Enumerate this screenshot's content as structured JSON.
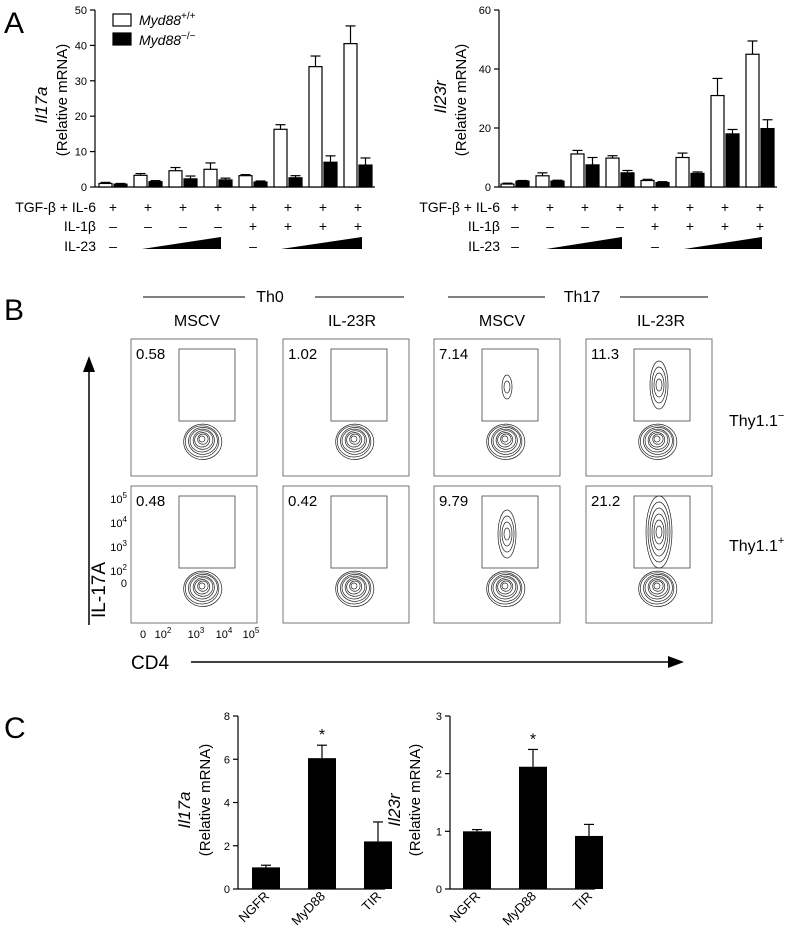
{
  "panel_letters": {
    "a": "A",
    "b": "B",
    "c": "C"
  },
  "panelA": {
    "legend": {
      "wt": "Myd88",
      "wt_sup": "+/+",
      "ko": "Myd88",
      "ko_sup": "−/−"
    },
    "treat_rows": {
      "tgf": "TGF-β + IL-6",
      "il1": "IL-1β",
      "il23": "IL-23"
    },
    "symbols": {
      "tgf": [
        "+",
        "+",
        "+",
        "+",
        "+",
        "+",
        "+",
        "+"
      ],
      "il1": [
        "–",
        "–",
        "–",
        "–",
        "+",
        "+",
        "+",
        "+"
      ],
      "il23": [
        "–",
        "",
        "",
        "",
        "–",
        "",
        "",
        ""
      ]
    }
  },
  "panelB": {
    "groups": {
      "th0": "Th0",
      "th17": "Th17"
    },
    "cols": [
      "MSCV",
      "IL-23R",
      "MSCV",
      "IL-23R"
    ],
    "rows": {
      "neg": "Thy1.1",
      "neg_sup": "−",
      "pos": "Thy1.1",
      "pos_sup": "+"
    },
    "percents": [
      [
        "0.58",
        "1.02",
        "7.14",
        "11.3"
      ],
      [
        "0.48",
        "0.42",
        "9.79",
        "21.2"
      ]
    ],
    "y_ticks": [
      {
        "base": "10",
        "exp": "5"
      },
      {
        "base": "10",
        "exp": "4"
      },
      {
        "base": "10",
        "exp": "3"
      },
      {
        "base": "10",
        "exp": "2"
      },
      {
        "base": "0",
        "exp": ""
      }
    ],
    "x_ticks": [
      {
        "base": "0",
        "exp": ""
      },
      {
        "base": "10",
        "exp": "2"
      },
      {
        "base": "10",
        "exp": "3"
      },
      {
        "base": "10",
        "exp": "4"
      },
      {
        "base": "10",
        "exp": "5"
      }
    ],
    "ylabel": "IL-17A",
    "xlabel": "CD4"
  },
  "chart_data": [
    {
      "type": "bar",
      "panel": "A-left",
      "ylabel_italic": "Il17a",
      "ylabel": "(Relative mRNA)",
      "ylim": [
        0,
        50
      ],
      "yticks": [
        0,
        10,
        20,
        30,
        40,
        50
      ],
      "series": [
        {
          "name": "Myd88+/+",
          "values": [
            1.0,
            3.3,
            4.6,
            5.0,
            3.2,
            16.3,
            34.0,
            40.5
          ],
          "errors": [
            0.3,
            0.5,
            0.9,
            1.8,
            0.3,
            1.3,
            3.0,
            5.0
          ]
        },
        {
          "name": "Myd88−/−",
          "values": [
            0.8,
            1.5,
            2.3,
            2.0,
            1.4,
            2.6,
            7.0,
            6.2
          ],
          "errors": [
            0.2,
            0.3,
            0.8,
            0.5,
            0.3,
            0.6,
            1.8,
            2.0
          ]
        }
      ]
    },
    {
      "type": "bar",
      "panel": "A-right",
      "ylabel_italic": "Il23r",
      "ylabel": "(Relative mRNA)",
      "ylim": [
        0,
        60
      ],
      "yticks": [
        0,
        20,
        40,
        60
      ],
      "series": [
        {
          "name": "Myd88+/+",
          "values": [
            1.0,
            3.8,
            11.2,
            9.8,
            2.2,
            10.0,
            31.0,
            45.0
          ],
          "errors": [
            0.3,
            1.0,
            1.2,
            0.8,
            0.4,
            1.5,
            5.8,
            4.5
          ]
        },
        {
          "name": "Myd88−/−",
          "values": [
            2.0,
            2.0,
            7.5,
            4.8,
            1.5,
            4.6,
            18.0,
            19.8
          ],
          "errors": [
            0.2,
            0.3,
            2.5,
            0.8,
            0.3,
            0.5,
            1.5,
            3.0
          ]
        }
      ]
    },
    {
      "type": "bar",
      "panel": "C-left",
      "ylabel_italic": "Il17a",
      "ylabel": "(Relative mRNA)",
      "ylim": [
        0,
        8
      ],
      "yticks": [
        0,
        2,
        4,
        6,
        8
      ],
      "categories": [
        "NGFR",
        "MyD88",
        "TIR"
      ],
      "values": [
        1.0,
        6.05,
        2.2
      ],
      "errors": [
        0.1,
        0.6,
        0.9
      ],
      "significance": [
        "",
        "*",
        ""
      ]
    },
    {
      "type": "bar",
      "panel": "C-right",
      "ylabel_italic": "Il23r",
      "ylabel": "(Relative mRNA)",
      "ylim": [
        0,
        3
      ],
      "yticks": [
        0,
        1,
        2,
        3
      ],
      "categories": [
        "NGFR",
        "MyD88",
        "TIR"
      ],
      "values": [
        1.0,
        2.12,
        0.92
      ],
      "errors": [
        0.03,
        0.3,
        0.2
      ],
      "significance": [
        "",
        "*",
        ""
      ]
    }
  ]
}
